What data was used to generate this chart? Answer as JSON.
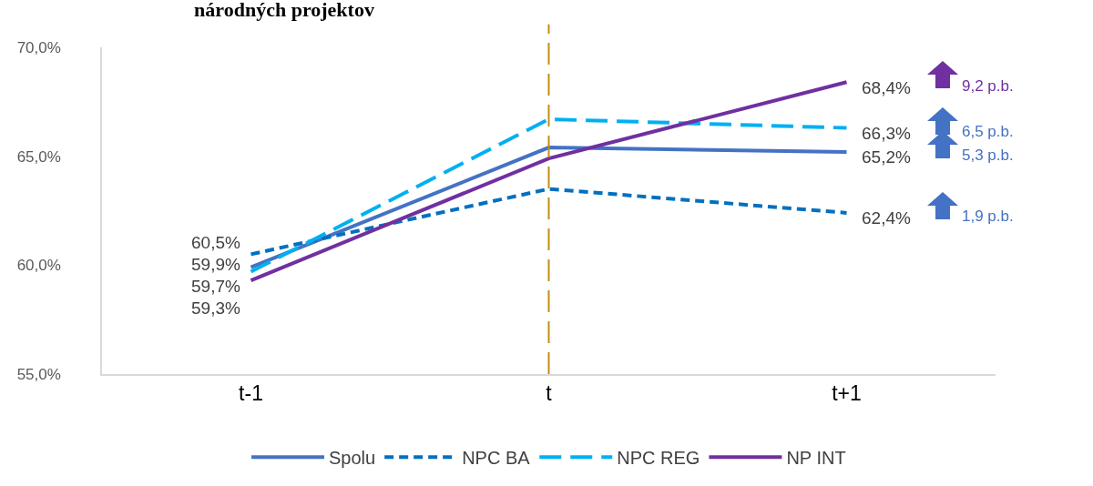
{
  "chart_data": {
    "type": "line",
    "title": "národných projektov",
    "categories": [
      "t-1",
      "t",
      "t+1"
    ],
    "series": [
      {
        "name": "Spolu",
        "color": "#4472c4",
        "line_style": "solid",
        "values": [
          59.9,
          65.4,
          65.2
        ],
        "value_labels": [
          "59,9%",
          null,
          "65,2%"
        ]
      },
      {
        "name": "NPC BA",
        "color": "#0070c0",
        "line_style": "dotted",
        "values": [
          60.5,
          63.5,
          62.4
        ],
        "value_labels": [
          "60,5%",
          null,
          "62,4%"
        ]
      },
      {
        "name": "NPC REG",
        "color": "#00b0f0",
        "line_style": "dashed",
        "values": [
          59.7,
          66.7,
          66.3
        ],
        "value_labels": [
          "59,7%",
          null,
          "66,3%"
        ]
      },
      {
        "name": "NP INT",
        "color": "#7030a0",
        "line_style": "solid",
        "values": [
          59.3,
          64.9,
          68.4
        ],
        "value_labels": [
          "59,3%",
          null,
          "68,4%"
        ]
      }
    ],
    "ylim": [
      55,
      70
    ],
    "yticks": [
      {
        "value": 55,
        "label": "55,0%"
      },
      {
        "value": 60,
        "label": "60,0%"
      },
      {
        "value": 65,
        "label": "65,0%"
      },
      {
        "value": 70,
        "label": "70,0%"
      }
    ],
    "ref_lines": [
      {
        "axis": "x",
        "value": "t",
        "color": "#c09010",
        "line_style": "dashed"
      }
    ],
    "annotations": [
      "9,2 p.b.",
      "6,5 p.b.",
      "5,3 p.b.",
      "1,9 p.b."
    ],
    "grid": false,
    "legend": "bottom",
    "marker": "none"
  }
}
